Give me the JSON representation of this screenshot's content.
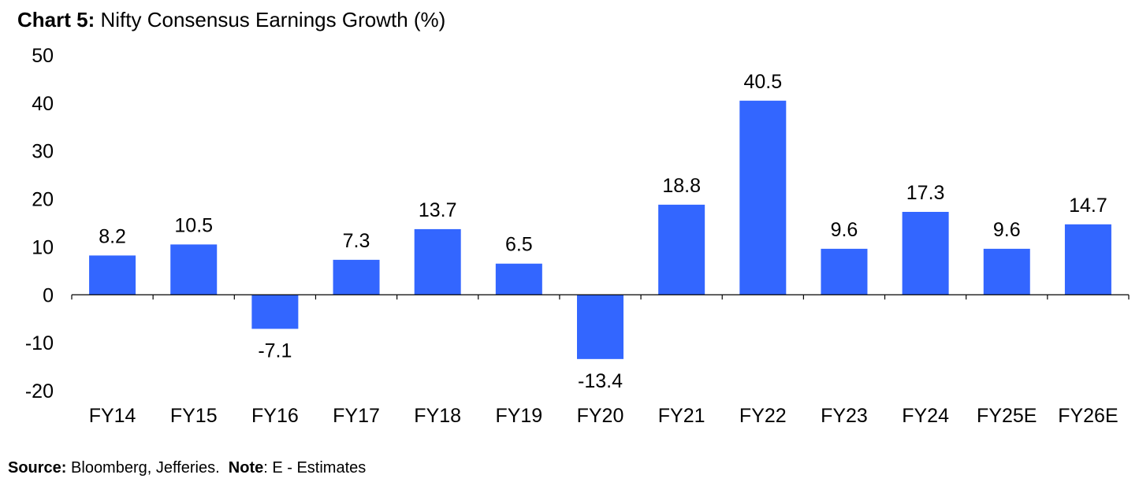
{
  "title": {
    "prefix": "Chart 5:",
    "text": "Nifty Consensus Earnings Growth (%)"
  },
  "source": {
    "label": "Source:",
    "text": "Bloomberg, Jefferies.",
    "note_label": "Note",
    "note_text": ": E - Estimates"
  },
  "chart_data": {
    "type": "bar",
    "title": "Chart 5: Nifty Consensus Earnings Growth (%)",
    "categories": [
      "FY14",
      "FY15",
      "FY16",
      "FY17",
      "FY18",
      "FY19",
      "FY20",
      "FY21",
      "FY22",
      "FY23",
      "FY24",
      "FY25E",
      "FY26E"
    ],
    "values": [
      8.2,
      10.5,
      -7.1,
      7.3,
      13.7,
      6.5,
      -13.4,
      18.8,
      40.5,
      9.6,
      17.3,
      9.6,
      14.7
    ],
    "data_labels": [
      "8.2",
      "10.5",
      "-7.1",
      "7.3",
      "13.7",
      "6.5",
      "-13.4",
      "18.8",
      "40.5",
      "9.6",
      "17.3",
      "9.6",
      "14.7"
    ],
    "y_ticks": [
      50,
      40,
      30,
      20,
      10,
      0,
      -10,
      -20
    ],
    "ylim": [
      -20,
      50
    ],
    "xlabel": "",
    "ylabel": "",
    "bar_color": "#3366ff",
    "grid": false,
    "legend": "none"
  }
}
